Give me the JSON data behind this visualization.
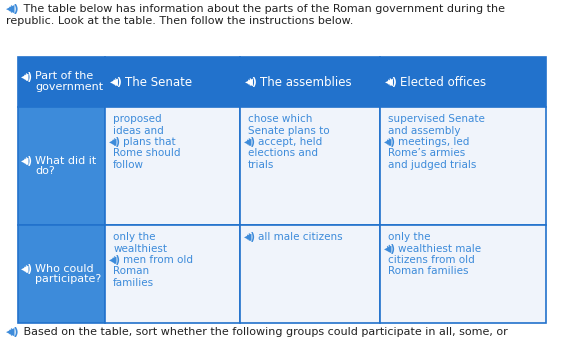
{
  "title_line1": " The table below has information about the parts of the Roman government during the",
  "title_line2": "republic. Look at the table. Then follow the instructions below.",
  "footer": " Based on the table, sort whether the following groups could participate in all, some, or",
  "header_col0_line1": "Part of the",
  "header_col0_line2": "government",
  "header_col1": "The Senate",
  "header_col2": "The assemblies",
  "header_col3": "Elected offices",
  "row1_col0_line1": "What did it",
  "row1_col0_line2": "do?",
  "row1_col1": [
    "proposed",
    "ideas and",
    "plans that",
    "Rome should",
    "follow"
  ],
  "row1_col2": [
    "chose which",
    "Senate plans to",
    "accept, held",
    "elections and",
    "trials"
  ],
  "row1_col3": [
    "supervised Senate",
    "and assembly",
    "meetings, led",
    "Rome’s armies",
    "and judged trials"
  ],
  "row2_col0_line1": "Who could",
  "row2_col0_line2": "participate?",
  "row2_col1": [
    "only the",
    "wealthiest",
    "men from old",
    "Roman",
    "families"
  ],
  "row2_col2": [
    "all male citizens"
  ],
  "row2_col3": [
    "only the",
    "wealthiest male",
    "citizens from old",
    "Roman families"
  ],
  "col0_icon_row1_at_line": 2,
  "col0_icon_row2_at_line": 2,
  "col1_icon_row1_at_line": 2,
  "col2_icon_row1_at_line": 2,
  "col3_icon_row1_at_line": 2,
  "col1_icon_row2_at_line": 2,
  "col2_icon_row2_at_line": 0,
  "col3_icon_row2_at_line": 1,
  "blue_header": "#2272CC",
  "blue_row_col0": "#3D8BDA",
  "blue_cell_text": "#3D8BDA",
  "white": "#FFFFFF",
  "cell_bg": "#F0F4FB",
  "border_color": "#2272CC",
  "text_dark": "#222222",
  "fig_bg": "#FFFFFF"
}
